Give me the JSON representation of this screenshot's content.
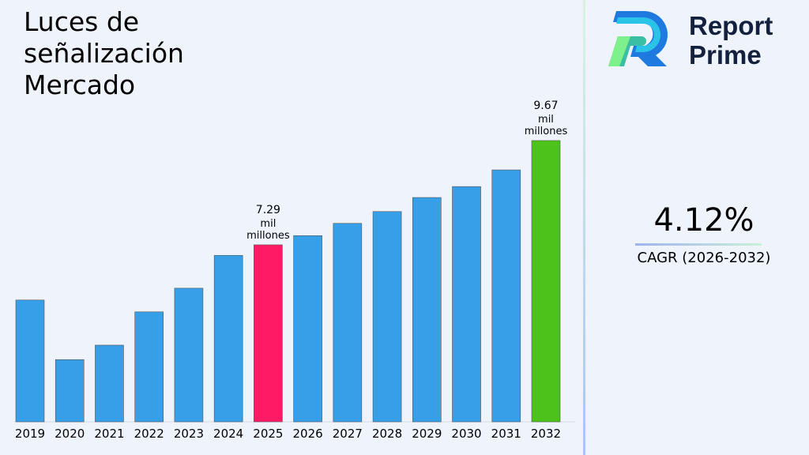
{
  "title": "Luces de señalización Mercado",
  "brand": {
    "line1": "Report",
    "line2": "Prime"
  },
  "cagr": {
    "value": "4.12%",
    "label": "CAGR (2026-2032)"
  },
  "chart_data": {
    "type": "bar",
    "title": "Luces de señalización Mercado",
    "categories": [
      "2019",
      "2020",
      "2021",
      "2022",
      "2023",
      "2024",
      "2025",
      "2026",
      "2027",
      "2028",
      "2029",
      "2030",
      "2031",
      "2032"
    ],
    "values": [
      6.03,
      4.67,
      5.0,
      5.76,
      6.3,
      7.05,
      7.29,
      7.5,
      7.78,
      8.05,
      8.37,
      8.62,
      9.0,
      9.67
    ],
    "colors": [
      "#379fe8",
      "#379fe8",
      "#379fe8",
      "#379fe8",
      "#379fe8",
      "#379fe8",
      "#ff1a66",
      "#379fe8",
      "#379fe8",
      "#379fe8",
      "#379fe8",
      "#379fe8",
      "#379fe8",
      "#4cc21a"
    ],
    "data_labels": {
      "2025": [
        "7.29",
        "mil",
        "millones"
      ],
      "2032": [
        "9.67",
        "mil",
        "millones"
      ]
    },
    "ylim": [
      3.25,
      10.3
    ],
    "grid": false,
    "xlabel": "",
    "ylabel": ""
  }
}
